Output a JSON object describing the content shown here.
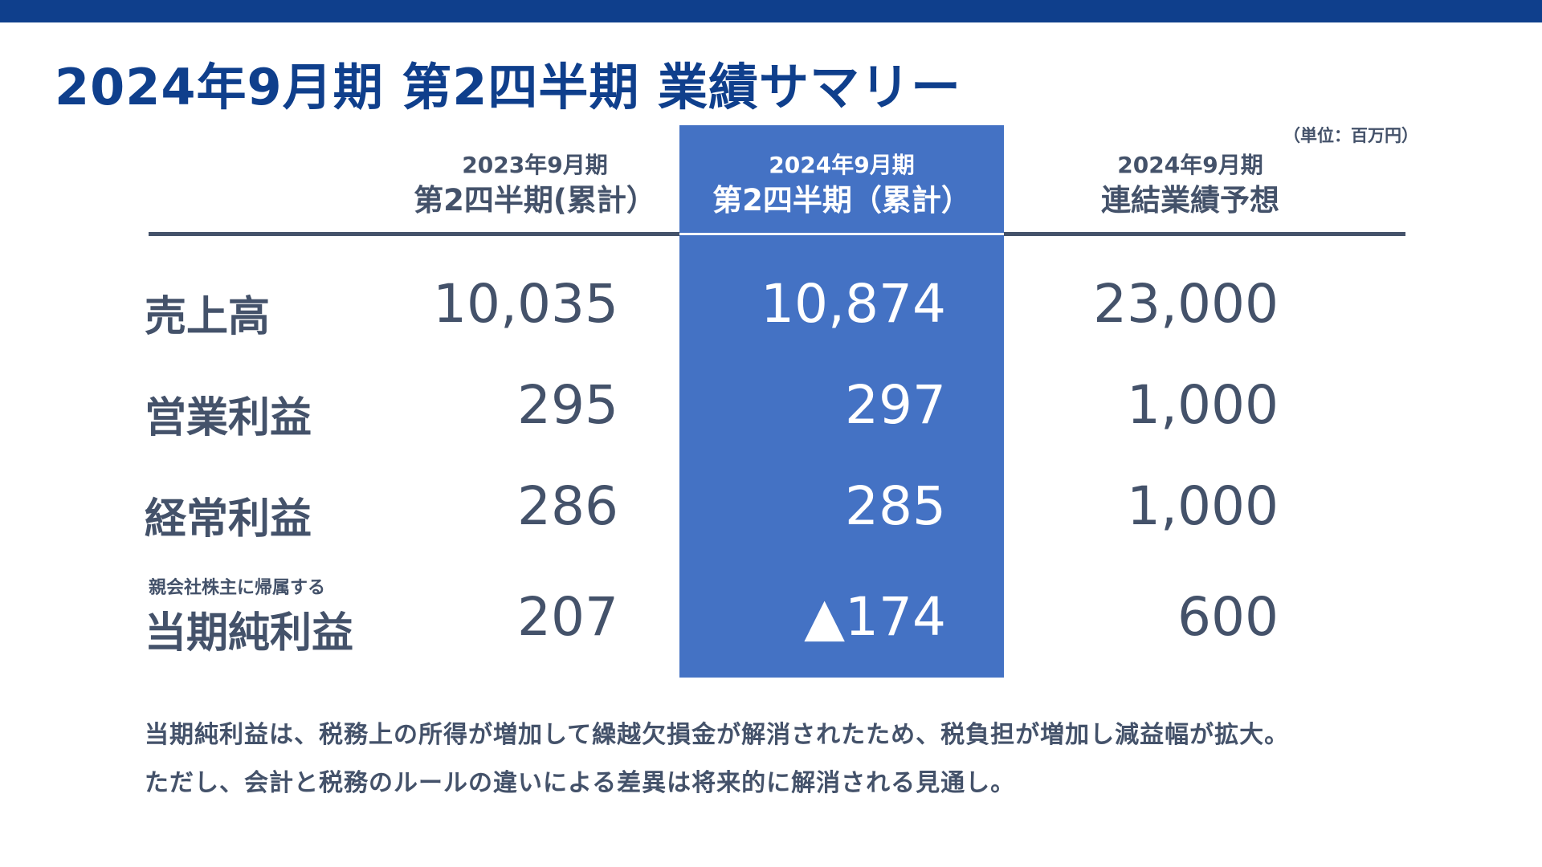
{
  "title": "2024年9月期 第2四半期 業績サマリー",
  "unit": "（単位：百万円）",
  "columns": {
    "prev": {
      "line1": "2023年9月期",
      "line2": "第2四半期(累計）"
    },
    "current": {
      "line1": "2024年9月期",
      "line2": "第2四半期（累計）"
    },
    "forecast": {
      "line1": "2024年9月期",
      "line2": "連結業績予想"
    }
  },
  "rows": [
    {
      "label": "売上高",
      "prev": "10,035",
      "current": "10,874",
      "forecast": "23,000"
    },
    {
      "label": "営業利益",
      "prev": "295",
      "current": "297",
      "forecast": "1,000"
    },
    {
      "label": "経常利益",
      "prev": "286",
      "current": "285",
      "forecast": "1,000"
    },
    {
      "label_small": "親会社株主に帰属する",
      "label": "当期純利益",
      "prev": "207",
      "current": "▲174",
      "forecast": "600"
    }
  ],
  "notes": [
    "当期純利益は、税務上の所得が増加して繰越欠損金が解消されたため、税負担が増加し減益幅が拡大。",
    "ただし、会計と税務のルールの違いによる差異は将来的に解消される見通し。"
  ],
  "colors": {
    "brand": "#0f3f8c",
    "highlight": "#4472c4",
    "text": "#44526a"
  }
}
